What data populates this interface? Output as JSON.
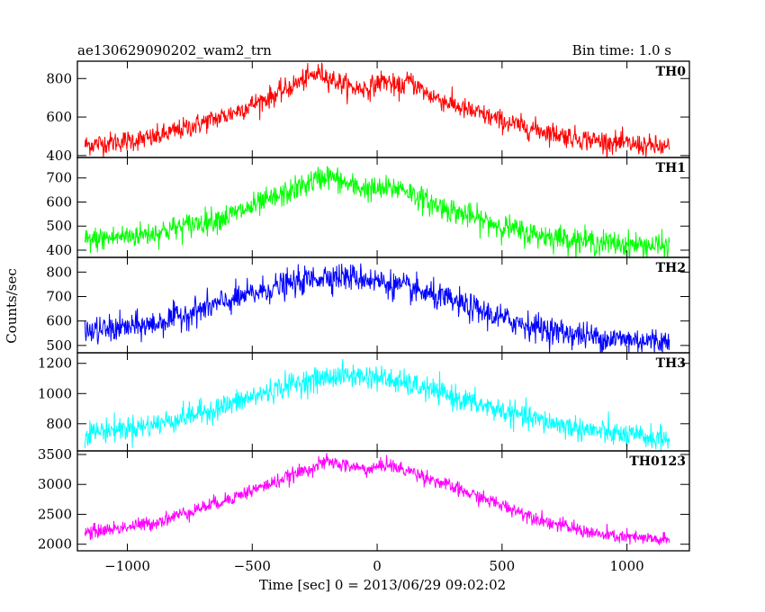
{
  "header": {
    "left_title": "ae130629090202_wam2_trn",
    "right_title": "Bin time: 1.0 s"
  },
  "chart_data": {
    "type": "line",
    "xlabel": "Time [sec] 0 = 2013/06/29 09:02:02",
    "ylabel": "Counts/sec",
    "xlim": [
      -1200,
      1250
    ],
    "x_ticks": [
      -1000,
      -500,
      0,
      500,
      1000
    ],
    "x_tick_labels": [
      "−1000",
      "−500",
      "0",
      "500",
      "1000"
    ],
    "x_range_data": [
      -1170,
      1170
    ],
    "panels": [
      {
        "name": "TH0",
        "color": "#ff0000",
        "ylim": [
          390,
          890
        ],
        "y_ticks": [
          400,
          600,
          800
        ],
        "noise": 28,
        "profile": [
          [
            -1170,
            455
          ],
          [
            -900,
            490
          ],
          [
            -600,
            610
          ],
          [
            -400,
            720
          ],
          [
            -300,
            790
          ],
          [
            -230,
            830
          ],
          [
            -170,
            790
          ],
          [
            -100,
            750
          ],
          [
            -30,
            750
          ],
          [
            20,
            790
          ],
          [
            50,
            780
          ],
          [
            80,
            745
          ],
          [
            130,
            790
          ],
          [
            200,
            720
          ],
          [
            350,
            640
          ],
          [
            550,
            560
          ],
          [
            800,
            490
          ],
          [
            1000,
            460
          ],
          [
            1170,
            440
          ]
        ]
      },
      {
        "name": "TH1",
        "color": "#00ff00",
        "ylim": [
          370,
          785
        ],
        "y_ticks": [
          400,
          500,
          600,
          700
        ],
        "noise": 26,
        "profile": [
          [
            -1170,
            440
          ],
          [
            -900,
            470
          ],
          [
            -600,
            540
          ],
          [
            -400,
            620
          ],
          [
            -250,
            690
          ],
          [
            -200,
            710
          ],
          [
            -100,
            665
          ],
          [
            0,
            650
          ],
          [
            100,
            660
          ],
          [
            200,
            600
          ],
          [
            400,
            530
          ],
          [
            600,
            470
          ],
          [
            900,
            430
          ],
          [
            1170,
            415
          ]
        ]
      },
      {
        "name": "TH2",
        "color": "#0000ff",
        "ylim": [
          470,
          860
        ],
        "y_ticks": [
          500,
          600,
          700,
          800
        ],
        "noise": 28,
        "profile": [
          [
            -1170,
            555
          ],
          [
            -900,
            585
          ],
          [
            -600,
            680
          ],
          [
            -400,
            740
          ],
          [
            -200,
            785
          ],
          [
            -50,
            775
          ],
          [
            100,
            740
          ],
          [
            300,
            680
          ],
          [
            500,
            610
          ],
          [
            700,
            560
          ],
          [
            900,
            530
          ],
          [
            1170,
            515
          ]
        ]
      },
      {
        "name": "TH3",
        "color": "#00ffff",
        "ylim": [
          620,
          1270
        ],
        "y_ticks": [
          800,
          1000,
          1200
        ],
        "noise": 40,
        "profile": [
          [
            -1170,
            740
          ],
          [
            -900,
            790
          ],
          [
            -600,
            920
          ],
          [
            -350,
            1060
          ],
          [
            -150,
            1120
          ],
          [
            0,
            1110
          ],
          [
            200,
            1030
          ],
          [
            400,
            930
          ],
          [
            600,
            840
          ],
          [
            800,
            770
          ],
          [
            1000,
            720
          ],
          [
            1170,
            700
          ]
        ]
      },
      {
        "name": "TH0123",
        "color": "#ff00ff",
        "ylim": [
          1890,
          3560
        ],
        "y_ticks": [
          2000,
          2500,
          3000,
          3500
        ],
        "noise": 60,
        "profile": [
          [
            -1170,
            2190
          ],
          [
            -900,
            2350
          ],
          [
            -600,
            2750
          ],
          [
            -400,
            3050
          ],
          [
            -250,
            3300
          ],
          [
            -200,
            3380
          ],
          [
            -120,
            3310
          ],
          [
            -40,
            3250
          ],
          [
            0,
            3280
          ],
          [
            40,
            3350
          ],
          [
            80,
            3270
          ],
          [
            150,
            3200
          ],
          [
            300,
            2950
          ],
          [
            500,
            2650
          ],
          [
            700,
            2350
          ],
          [
            900,
            2150
          ],
          [
            1170,
            2060
          ]
        ]
      }
    ]
  }
}
